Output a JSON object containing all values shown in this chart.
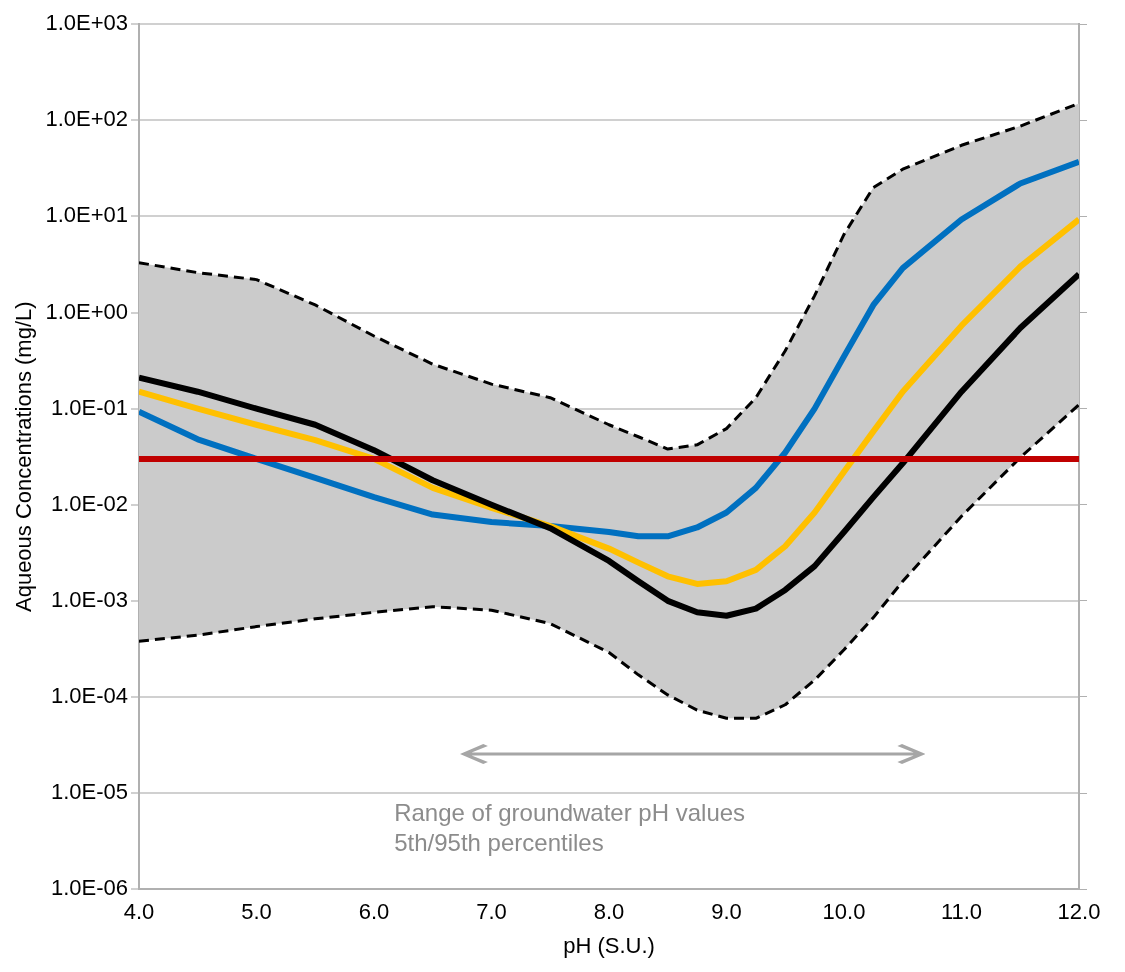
{
  "chart_data": {
    "type": "line",
    "xlabel": "pH (S.U.)",
    "ylabel": "Aqueous Concentrations (mg/L)",
    "x": [
      4,
      4.5,
      5,
      5.5,
      6,
      6.5,
      7,
      7.5,
      8,
      8.25,
      8.5,
      8.75,
      9,
      9.25,
      9.5,
      9.75,
      10,
      10.25,
      10.5,
      11,
      11.5,
      12
    ],
    "series": [
      {
        "color": "#000000",
        "values": [
          0.21,
          0.15,
          0.1,
          0.068,
          0.037,
          0.018,
          0.01,
          0.0057,
          0.0026,
          0.0016,
          0.001,
          0.00076,
          0.0007,
          0.00083,
          0.0013,
          0.0023,
          0.0052,
          0.012,
          0.027,
          0.15,
          0.69,
          2.5
        ],
        "lower": [
          0.00038,
          0.00044,
          0.00054,
          0.00065,
          0.00076,
          0.00087,
          0.0008,
          0.00058,
          0.00029,
          0.00017,
          0.000105,
          7.3e-05,
          6e-05,
          6e-05,
          8.3e-05,
          0.00015,
          0.00031,
          0.00067,
          0.0016,
          0.0076,
          0.031,
          0.11
        ],
        "upper": [
          3.3,
          2.6,
          2.2,
          1.2,
          0.57,
          0.29,
          0.18,
          0.13,
          0.068,
          0.051,
          0.038,
          0.042,
          0.062,
          0.13,
          0.4,
          1.5,
          6.5,
          20,
          31,
          55,
          87,
          150
        ]
      },
      {
        "color": "#000000",
        "line_style": "dashed",
        "values": [
          0.00038,
          0.00044,
          0.00054,
          0.00065,
          0.00076,
          0.00087,
          0.0008,
          0.00058,
          0.00029,
          0.00017,
          0.000105,
          7.3e-05,
          6e-05,
          6e-05,
          8.3e-05,
          0.00015,
          0.00031,
          0.00067,
          0.0016,
          0.0076,
          0.031,
          0.11
        ]
      },
      {
        "color": "#000000",
        "line_style": "dashed",
        "values": [
          3.3,
          2.6,
          2.2,
          1.2,
          0.57,
          0.29,
          0.18,
          0.13,
          0.068,
          0.051,
          0.038,
          0.042,
          0.062,
          0.13,
          0.4,
          1.5,
          6.5,
          20,
          31,
          55,
          87,
          150
        ]
      },
      {
        "color": "#ffc000",
        "values": [
          0.15,
          0.1,
          0.068,
          0.047,
          0.03,
          0.015,
          0.0093,
          0.006,
          0.0035,
          0.0025,
          0.0018,
          0.0015,
          0.0016,
          0.0021,
          0.0037,
          0.0083,
          0.022,
          0.058,
          0.15,
          0.73,
          3,
          9.3
        ]
      },
      {
        "color": "#0070c0",
        "values": [
          0.093,
          0.048,
          0.03,
          0.019,
          0.012,
          0.0079,
          0.0066,
          0.006,
          0.0052,
          0.0047,
          0.0047,
          0.0058,
          0.0083,
          0.015,
          0.035,
          0.1,
          0.35,
          1.2,
          2.9,
          9.3,
          22,
          37
        ]
      }
    ],
    "ref_lines": [
      {
        "axis": "y",
        "value": 0.03,
        "color": "#c00000"
      }
    ],
    "annotations": [
      "Range of groundwater pH values\n5th/95th percentiles"
    ],
    "log": "y",
    "grid": "y",
    "legend": false,
    "marker": "none",
    "line_style": "solid",
    "xlim": [
      4,
      12
    ],
    "xticks": [
      {
        "value": 4,
        "label": "4.0"
      },
      {
        "value": 5,
        "label": "5.0"
      },
      {
        "value": 6,
        "label": "6.0"
      },
      {
        "value": 7,
        "label": "7.0"
      },
      {
        "value": 8,
        "label": "8.0"
      },
      {
        "value": 9,
        "label": "9.0"
      },
      {
        "value": 10,
        "label": "10.0"
      },
      {
        "value": 11,
        "label": "11.0"
      },
      {
        "value": 12,
        "label": "12.0"
      }
    ],
    "ylim": [
      1e-06,
      1000
    ],
    "yticks": [
      {
        "value": 1e-06,
        "label": "1.0E-06"
      },
      {
        "value": 1e-05,
        "label": "1.0E-05"
      },
      {
        "value": 0.0001,
        "label": "1.0E-04"
      },
      {
        "value": 0.001,
        "label": "1.0E-03"
      },
      {
        "value": 0.01,
        "label": "1.0E-02"
      },
      {
        "value": 0.1,
        "label": "1.0E-01"
      },
      {
        "value": 1,
        "label": "1.0E+00"
      },
      {
        "value": 10,
        "label": "1.0E+01"
      },
      {
        "value": 100,
        "label": "1.0E+02"
      },
      {
        "value": 1000,
        "label": "1.0E+03"
      }
    ]
  }
}
